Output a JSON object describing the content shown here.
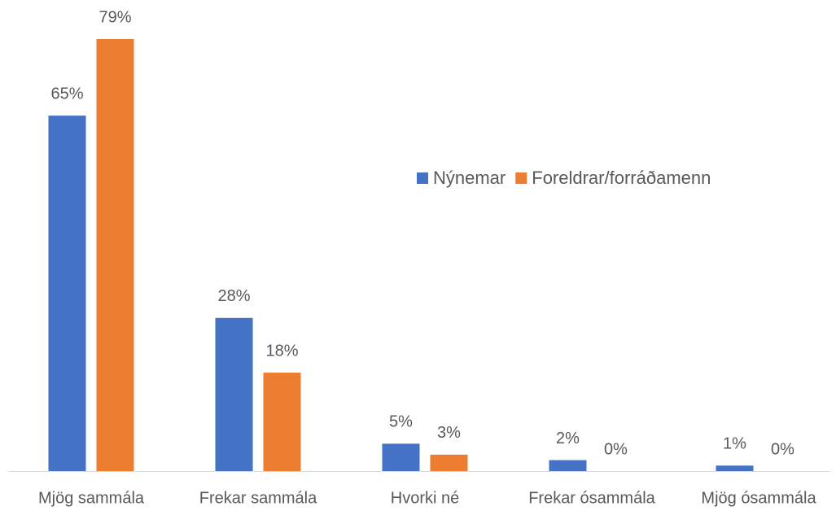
{
  "chart_data": {
    "type": "bar",
    "categories": [
      "Mjög sammála",
      "Frekar sammála",
      "Hvorki né",
      "Frekar ósammála",
      "Mjög ósammála"
    ],
    "series": [
      {
        "name": "Nýnemar",
        "color": "#4472c4",
        "values": [
          65,
          28,
          5,
          2,
          1
        ],
        "value_labels": [
          "65%",
          "28%",
          "5%",
          "2%",
          "1%"
        ]
      },
      {
        "name": "Foreldrar/forráðamenn",
        "color": "#ed7d31",
        "values": [
          79,
          18,
          3,
          0,
          0
        ],
        "value_labels": [
          "79%",
          "18%",
          "3%",
          "0%",
          "0%"
        ]
      }
    ],
    "legend": "right"
  }
}
